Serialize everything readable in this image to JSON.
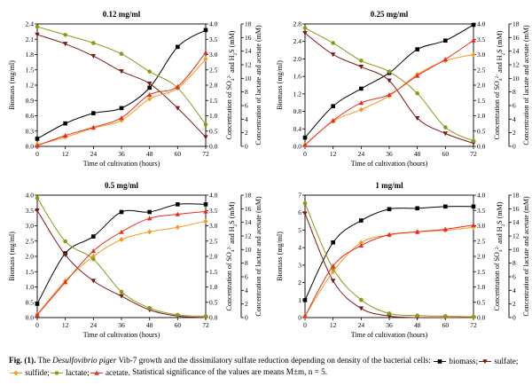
{
  "caption": {
    "fig_label": "Fig. (1).",
    "text_before_italic": " The ",
    "species_italic": "Desulfovibrio piger",
    "text_after_italic": " Vib-7 growth and the dissimilatory sulfate reduction depending on density of the bacterial cells:",
    "legend": [
      {
        "key": "biomass",
        "label": "biomass;"
      },
      {
        "key": "sulfate",
        "label": "sulfate;"
      },
      {
        "key": "sulfide",
        "label": "sulfide;"
      },
      {
        "key": "lactate",
        "label": "lactate;"
      },
      {
        "key": "acetate",
        "label": "acetate."
      }
    ],
    "stats_note": "Statistical significance of the values are means M±m, n = 5."
  },
  "series_style": {
    "biomass": {
      "color": "#000000",
      "marker": "square"
    },
    "sulfate": {
      "color": "#7b1a14",
      "marker": "triangle-down"
    },
    "sulfide": {
      "color": "#f39a1f",
      "marker": "diamond"
    },
    "lactate": {
      "color": "#8c9a17",
      "marker": "circle"
    },
    "acetate": {
      "color": "#ee2a1e",
      "marker": "triangle-up"
    }
  },
  "chart_data": [
    {
      "type": "line",
      "title": "0.12 mg/ml",
      "xlabel": "Time of cultivation (hours)",
      "ylabel_left": "Biomass (mg/ml)",
      "ylabel_right_inner": "Concentration of SO4 2- and H2S (mM)",
      "ylabel_right_outer": "Concentration of lactate and acetate (mM)",
      "x": [
        0,
        12,
        24,
        36,
        48,
        60,
        72
      ],
      "xlim": [
        0,
        72
      ],
      "x_ticks": [
        0,
        12,
        24,
        36,
        48,
        60,
        72
      ],
      "left_axis": {
        "lim": [
          0,
          2.4
        ],
        "ticks": [
          "0.0",
          "0.3",
          "0.6",
          "0.9",
          "1.2",
          "1.5",
          "1.8",
          "2.1",
          "2.4"
        ]
      },
      "right_inner_axis": {
        "lim": [
          0,
          4.0
        ],
        "ticks": [
          "0.0",
          "0.5",
          "1.0",
          "1.5",
          "2.0",
          "2.5",
          "3.0",
          "3.5",
          "4.0"
        ]
      },
      "right_outer_axis": {
        "lim": [
          0,
          18
        ],
        "ticks": [
          "0",
          "2",
          "4",
          "6",
          "8",
          "10",
          "12",
          "14",
          "16",
          "18"
        ]
      },
      "series": [
        {
          "key": "biomass",
          "axis": "left",
          "values": [
            0.15,
            0.45,
            0.65,
            0.75,
            1.15,
            1.95,
            2.28
          ]
        },
        {
          "key": "sulfate",
          "axis": "inner",
          "values": [
            3.65,
            3.35,
            2.95,
            2.45,
            2.05,
            1.25,
            0.3
          ]
        },
        {
          "key": "sulfide",
          "axis": "inner",
          "values": [
            0.05,
            0.3,
            0.6,
            0.85,
            1.55,
            1.9,
            2.85
          ]
        },
        {
          "key": "lactate",
          "axis": "outer",
          "values": [
            17.6,
            16.4,
            15.2,
            13.6,
            11.0,
            8.6,
            3.2
          ]
        },
        {
          "key": "acetate",
          "axis": "outer",
          "values": [
            0.1,
            1.6,
            2.8,
            4.2,
            7.6,
            8.8,
            13.8
          ]
        }
      ]
    },
    {
      "type": "line",
      "title": "0.25 mg/ml",
      "xlabel": "Time of cultivation (hours)",
      "ylabel_left": "Biomass (mg/ml)",
      "ylabel_right_inner": "Concentration of SO4 2- and H2S (mM)",
      "ylabel_right_outer": "Concentration of lactate and acetate (mM)",
      "x": [
        0,
        12,
        24,
        36,
        48,
        60,
        72
      ],
      "xlim": [
        0,
        72
      ],
      "x_ticks": [
        0,
        12,
        24,
        36,
        48,
        60,
        72
      ],
      "left_axis": {
        "lim": [
          0,
          2.8
        ],
        "ticks": [
          "0.0",
          "0.4",
          "0.8",
          "1.2",
          "1.6",
          "2.0",
          "2.4",
          "2.8"
        ]
      },
      "right_inner_axis": {
        "lim": [
          0,
          4.0
        ],
        "ticks": [
          "0.0",
          "0.5",
          "1.0",
          "1.5",
          "2.0",
          "2.5",
          "3.0",
          "3.5",
          "4.0"
        ]
      },
      "right_outer_axis": {
        "lim": [
          0,
          18
        ],
        "ticks": [
          "0",
          "2",
          "4",
          "6",
          "8",
          "10",
          "12",
          "14",
          "16",
          "18"
        ]
      },
      "series": [
        {
          "key": "biomass",
          "axis": "left",
          "values": [
            0.2,
            0.92,
            1.32,
            1.68,
            2.22,
            2.42,
            2.78
          ]
        },
        {
          "key": "sulfate",
          "axis": "inner",
          "values": [
            3.7,
            3.0,
            2.6,
            2.15,
            0.92,
            0.42,
            0.1
          ]
        },
        {
          "key": "sulfide",
          "axis": "inner",
          "values": [
            0.05,
            0.82,
            1.2,
            1.65,
            2.35,
            2.8,
            3.0
          ]
        },
        {
          "key": "lactate",
          "axis": "outer",
          "values": [
            17.4,
            15.2,
            12.6,
            11.0,
            7.8,
            2.8,
            0.8
          ]
        },
        {
          "key": "acetate",
          "axis": "outer",
          "values": [
            0.2,
            3.8,
            6.4,
            7.6,
            10.4,
            12.8,
            15.6
          ]
        }
      ]
    },
    {
      "type": "line",
      "title": "0.5 mg/ml",
      "xlabel": "Time of cultivation (hours)",
      "ylabel_left": "Biomass (mg/ml)",
      "ylabel_right_inner": "Concentration of SO4 2- and H2S (mM)",
      "ylabel_right_outer": "Concentration of lactate and acetate (mM)",
      "x": [
        0,
        12,
        24,
        36,
        48,
        60,
        72
      ],
      "xlim": [
        0,
        72
      ],
      "x_ticks": [
        0,
        12,
        24,
        36,
        48,
        60,
        72
      ],
      "left_axis": {
        "lim": [
          0,
          4.0
        ],
        "ticks": [
          "0.0",
          "0.5",
          "1.0",
          "1.5",
          "2.0",
          "2.5",
          "3.0",
          "3.5",
          "4.0"
        ]
      },
      "right_inner_axis": {
        "lim": [
          0,
          4.0
        ],
        "ticks": [
          "0.0",
          "0.5",
          "1.0",
          "1.5",
          "2.0",
          "2.5",
          "3.0",
          "3.5",
          "4.0"
        ]
      },
      "right_outer_axis": {
        "lim": [
          0,
          18
        ],
        "ticks": [
          "0",
          "2",
          "4",
          "6",
          "8",
          "10",
          "12",
          "14",
          "16",
          "18"
        ]
      },
      "series": [
        {
          "key": "biomass",
          "axis": "left",
          "values": [
            0.45,
            2.1,
            2.65,
            3.45,
            3.45,
            3.7,
            3.7
          ]
        },
        {
          "key": "sulfate",
          "axis": "inner",
          "values": [
            3.5,
            2.05,
            1.2,
            0.7,
            0.25,
            0.05,
            0.0
          ]
        },
        {
          "key": "sulfide",
          "axis": "inner",
          "values": [
            0.1,
            1.2,
            2.0,
            2.55,
            2.8,
            2.95,
            3.15
          ]
        },
        {
          "key": "lactate",
          "axis": "outer",
          "values": [
            17.6,
            11.2,
            8.6,
            3.8,
            1.4,
            0.4,
            0.2
          ]
        },
        {
          "key": "acetate",
          "axis": "outer",
          "values": [
            0.4,
            5.2,
            9.8,
            12.6,
            14.6,
            15.2,
            15.6
          ]
        }
      ]
    },
    {
      "type": "line",
      "title": "1 mg/ml",
      "xlabel": "Time of cultivation (hours)",
      "ylabel_left": "Biomass (mg/ml)",
      "ylabel_right_inner": "Concentration of SO4 2- and H2S (mM)",
      "ylabel_right_outer": "Concentration of lactate and acetate (mM)",
      "x": [
        0,
        12,
        24,
        36,
        48,
        60,
        72
      ],
      "xlim": [
        0,
        72
      ],
      "x_ticks": [
        0,
        12,
        24,
        36,
        48,
        60,
        72
      ],
      "left_axis": {
        "lim": [
          0,
          7
        ],
        "ticks": [
          "0",
          "1",
          "2",
          "3",
          "4",
          "5",
          "6",
          "7"
        ]
      },
      "right_inner_axis": {
        "lim": [
          0,
          4.0
        ],
        "ticks": [
          "0.0",
          "0.5",
          "1.0",
          "1.5",
          "2.0",
          "2.5",
          "3.0",
          "3.5",
          "4.0"
        ]
      },
      "right_outer_axis": {
        "lim": [
          0,
          18
        ],
        "ticks": [
          "0",
          "2",
          "4",
          "6",
          "8",
          "10",
          "12",
          "14",
          "16",
          "18"
        ]
      },
      "series": [
        {
          "key": "biomass",
          "axis": "left",
          "values": [
            1.0,
            4.3,
            5.55,
            6.2,
            6.25,
            6.35,
            6.35
          ]
        },
        {
          "key": "sulfate",
          "axis": "inner",
          "values": [
            3.4,
            1.2,
            0.3,
            0.05,
            0.0,
            0.0,
            0.0
          ]
        },
        {
          "key": "sulfide",
          "axis": "inner",
          "values": [
            0.05,
            1.5,
            2.45,
            2.7,
            2.8,
            2.85,
            2.95
          ]
        },
        {
          "key": "lactate",
          "axis": "outer",
          "values": [
            16.8,
            7.2,
            2.6,
            0.6,
            0.3,
            0.2,
            0.1
          ]
        },
        {
          "key": "acetate",
          "axis": "outer",
          "values": [
            0.2,
            7.6,
            10.6,
            12.2,
            12.6,
            13.0,
            13.6
          ]
        }
      ]
    }
  ]
}
